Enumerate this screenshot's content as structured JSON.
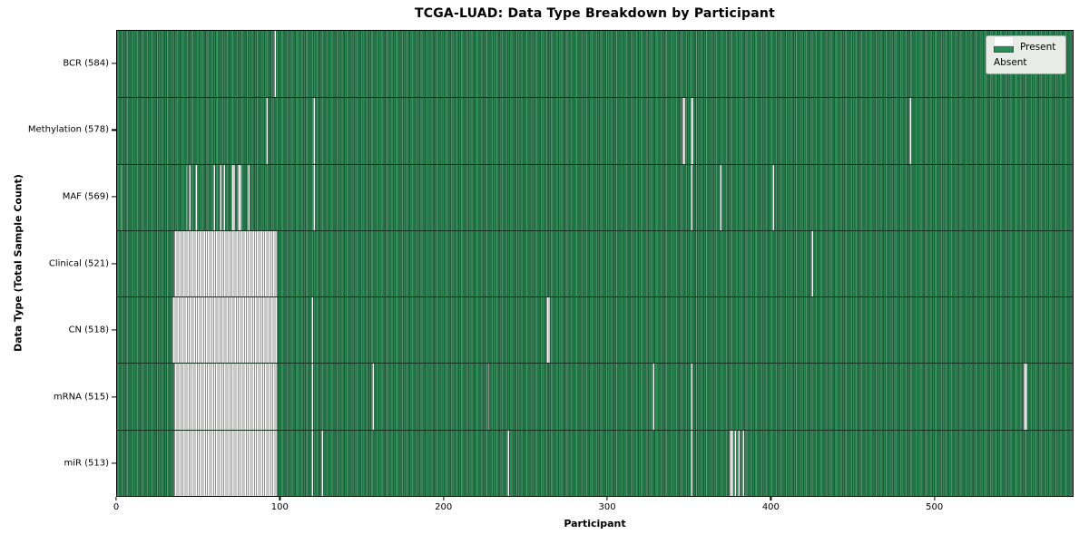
{
  "title": "TCGA-LUAD: Data Type Breakdown by Participant",
  "axes": {
    "xlabel": "Participant",
    "ylabel": "Data Type (Total Sample Count)"
  },
  "legend": {
    "items": [
      {
        "label": "Present",
        "color_key": "present"
      },
      {
        "label": "Absent",
        "color_key": "absent"
      }
    ]
  },
  "colors": {
    "present": "#2e8b57",
    "present_edge": "#14301e",
    "absent": "#ffffff",
    "absent_edge": "#7d7d7d"
  },
  "chart_data": {
    "type": "heatmap",
    "title": "TCGA-LUAD: Data Type Breakdown by Participant",
    "xlabel": "Participant",
    "ylabel": "Data Type (Total Sample Count)",
    "x_range": [
      0,
      585
    ],
    "x_ticks": [
      0,
      100,
      200,
      300,
      400,
      500
    ],
    "grid": false,
    "legend_position": "upper right",
    "value_encoding": {
      "present": "seagreen",
      "absent": "white"
    },
    "rows": [
      {
        "name": "BCR",
        "count": 584,
        "label": "BCR (584)",
        "absent_ranges": [
          [
            96,
            1
          ]
        ]
      },
      {
        "name": "Methylation",
        "count": 578,
        "label": "Methylation (578)",
        "absent_ranges": [
          [
            91,
            1
          ],
          [
            120,
            1
          ],
          [
            346,
            2
          ],
          [
            351,
            2
          ],
          [
            485,
            1
          ]
        ]
      },
      {
        "name": "MAF",
        "count": 569,
        "label": "MAF (569)",
        "absent_ranges": [
          [
            2,
            1
          ],
          [
            42,
            1
          ],
          [
            44,
            1
          ],
          [
            48,
            1
          ],
          [
            59,
            1
          ],
          [
            63,
            1
          ],
          [
            65,
            1
          ],
          [
            70,
            2
          ],
          [
            74,
            2
          ],
          [
            80,
            1
          ],
          [
            120,
            1
          ],
          [
            351,
            1
          ],
          [
            369,
            1
          ],
          [
            401,
            1
          ]
        ]
      },
      {
        "name": "Clinical",
        "count": 521,
        "label": "Clinical (521)",
        "absent_ranges": [
          [
            35,
            63
          ],
          [
            425,
            1
          ]
        ]
      },
      {
        "name": "CN",
        "count": 518,
        "label": "CN (518)",
        "absent_ranges": [
          [
            34,
            64
          ],
          [
            119,
            1
          ],
          [
            263,
            2
          ]
        ]
      },
      {
        "name": "mRNA",
        "count": 515,
        "label": "mRNA (515)",
        "absent_ranges": [
          [
            35,
            63
          ],
          [
            119,
            1
          ],
          [
            156,
            1
          ],
          [
            227,
            1
          ],
          [
            328,
            1
          ],
          [
            351,
            1
          ],
          [
            555,
            2
          ]
        ]
      },
      {
        "name": "miR",
        "count": 513,
        "label": "miR (513)",
        "absent_ranges": [
          [
            35,
            63
          ],
          [
            119,
            1
          ],
          [
            125,
            1
          ],
          [
            239,
            1
          ],
          [
            351,
            1
          ],
          [
            375,
            2
          ],
          [
            378,
            1
          ],
          [
            380,
            1
          ],
          [
            383,
            1
          ]
        ]
      }
    ]
  }
}
